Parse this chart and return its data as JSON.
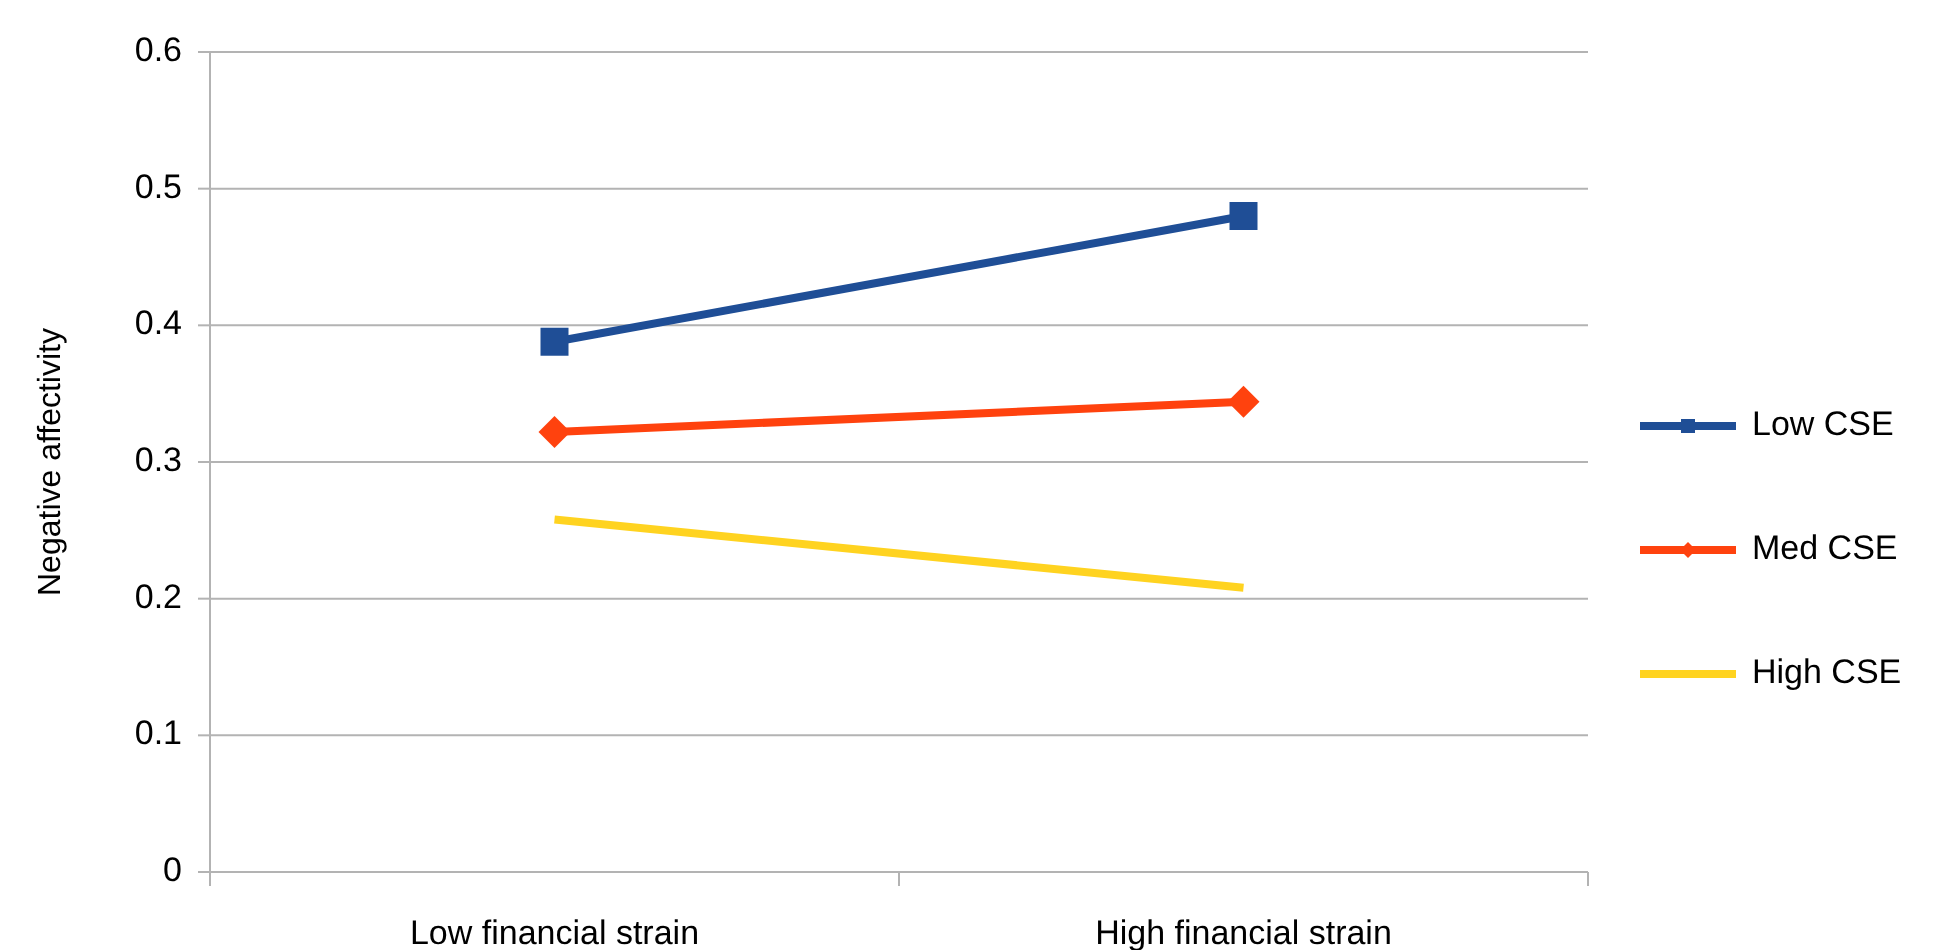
{
  "chart_data": {
    "type": "line",
    "ylabel": "Negative affectivity",
    "categories": [
      "Low financial strain",
      "High financial strain"
    ],
    "series": [
      {
        "name": "Low CSE",
        "color": "#1f4e96",
        "values": [
          0.388,
          0.48
        ],
        "marker": "square"
      },
      {
        "name": "Med CSE",
        "color": "#ff420e",
        "values": [
          0.322,
          0.344
        ],
        "marker": "diamond"
      },
      {
        "name": "High CSE",
        "color": "#ffd320",
        "values": [
          0.258,
          0.208
        ],
        "marker": "none"
      }
    ],
    "ylim": [
      0,
      0.6
    ],
    "yticks": [
      {
        "value": 0,
        "label": "0"
      },
      {
        "value": 0.1,
        "label": "0.1"
      },
      {
        "value": 0.2,
        "label": "0.2"
      },
      {
        "value": 0.3,
        "label": "0.3"
      },
      {
        "value": 0.4,
        "label": "0.4"
      },
      {
        "value": 0.5,
        "label": "0.5"
      },
      {
        "value": 0.6,
        "label": "0.6"
      }
    ],
    "grid": "y",
    "legend": "right"
  }
}
